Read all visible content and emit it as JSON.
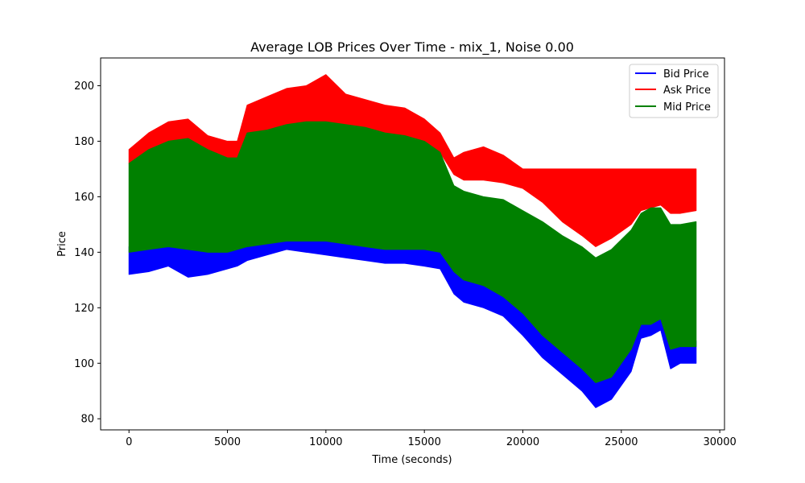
{
  "chart_data": {
    "type": "area",
    "title": "Average LOB Prices Over Time - mix_1, Noise 0.00",
    "xlabel": "Time (seconds)",
    "ylabel": "Price",
    "xlim": [
      -1440,
      30240
    ],
    "ylim": [
      76,
      210
    ],
    "xticks": [
      0,
      5000,
      10000,
      15000,
      20000,
      25000,
      30000
    ],
    "xtick_labels": [
      "0",
      "5000",
      "10000",
      "15000",
      "20000",
      "25000",
      "30000"
    ],
    "yticks": [
      80,
      100,
      120,
      140,
      160,
      180,
      200
    ],
    "ytick_labels": [
      "80",
      "100",
      "120",
      "140",
      "160",
      "180",
      "200"
    ],
    "grid": false,
    "legend_position": "top-right",
    "x": [
      0,
      1000,
      2000,
      3000,
      4000,
      5000,
      5500,
      6000,
      7000,
      8000,
      9000,
      10000,
      11000,
      12000,
      13000,
      14000,
      15000,
      15800,
      16500,
      17000,
      18000,
      19000,
      20000,
      21000,
      22000,
      23000,
      23700,
      24500,
      25500,
      26000,
      26500,
      27000,
      27500,
      28000,
      28800
    ],
    "series": [
      {
        "name": "Bid Price",
        "color": "#0000ff",
        "low": [
          132,
          133,
          135,
          131,
          132,
          134,
          135,
          137,
          139,
          141,
          140,
          139,
          138,
          137,
          136,
          136,
          135,
          134,
          125,
          122,
          120,
          117,
          110,
          102,
          96,
          90,
          84,
          87,
          97,
          109,
          110,
          112,
          98,
          100,
          100
        ],
        "high": [
          142,
          144,
          145,
          143,
          141,
          142,
          143,
          146,
          147,
          148,
          148,
          147,
          146,
          145,
          145,
          146,
          145,
          143,
          135,
          132,
          130,
          127,
          122,
          114,
          106,
          102,
          97,
          99,
          108,
          118,
          118,
          116,
          108,
          109,
          108
        ]
      },
      {
        "name": "Ask Price",
        "color": "#ff0000",
        "low": [
          172,
          176,
          178,
          177,
          175,
          172,
          172,
          183,
          184,
          186,
          187,
          187,
          186,
          185,
          183,
          182,
          180,
          176,
          168,
          166,
          166,
          165,
          163,
          158,
          151,
          146,
          142,
          145,
          150,
          155,
          156,
          157,
          154,
          154,
          155
        ],
        "high": [
          177,
          183,
          187,
          188,
          182,
          180,
          180,
          193,
          196,
          199,
          200,
          204,
          197,
          195,
          193,
          192,
          188,
          183,
          174,
          176,
          178,
          175,
          170,
          170,
          170,
          170,
          170,
          170,
          170,
          170,
          170,
          170,
          170,
          170,
          170
        ]
      },
      {
        "name": "Mid Price",
        "color": "#008000",
        "low": [
          140,
          141,
          142,
          141,
          140,
          140,
          141,
          142,
          143,
          144,
          144,
          144,
          143,
          142,
          141,
          141,
          141,
          140,
          133,
          130,
          128,
          124,
          118,
          110,
          104,
          98,
          93,
          95,
          105,
          114,
          114,
          116,
          105,
          106,
          106
        ],
        "high": [
          172,
          177,
          180,
          181,
          177,
          174,
          174,
          183,
          184,
          186,
          187,
          187,
          186,
          185,
          183,
          182,
          180,
          176,
          164,
          162,
          160,
          159,
          155,
          151,
          146,
          142,
          138,
          141,
          148,
          154,
          156,
          156,
          150,
          150,
          151
        ]
      }
    ]
  }
}
